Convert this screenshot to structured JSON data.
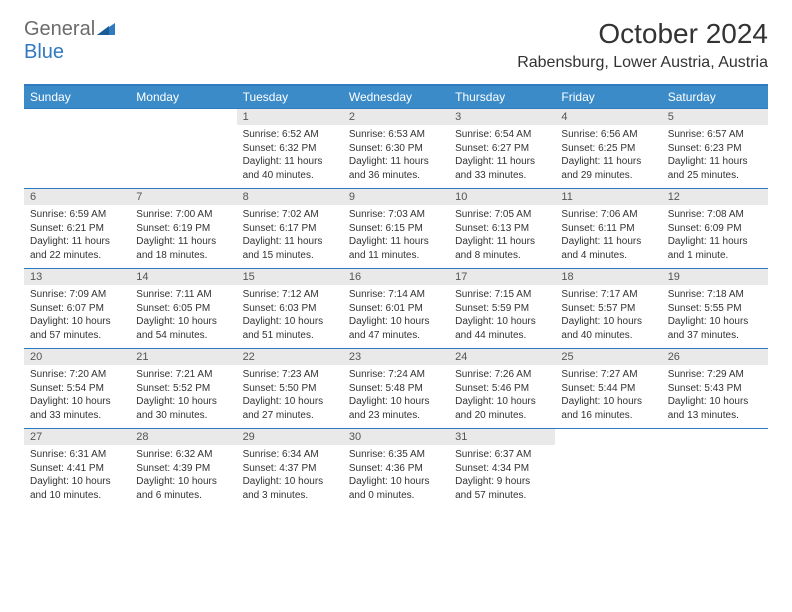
{
  "logo": {
    "text1": "General",
    "text2": "Blue"
  },
  "title": "October 2024",
  "location": "Rabensburg, Lower Austria, Austria",
  "dayHeaders": [
    "Sunday",
    "Monday",
    "Tuesday",
    "Wednesday",
    "Thursday",
    "Friday",
    "Saturday"
  ],
  "colors": {
    "header_bg": "#3b8bc9",
    "header_text": "#ffffff",
    "rule": "#2f7ac0",
    "daynum_bg": "#e9e9e9",
    "text": "#333333",
    "logo_gray": "#6b6b6b",
    "logo_blue": "#2f7ac0"
  },
  "weeks": [
    [
      {
        "n": "",
        "sr": "",
        "ss": "",
        "dl": ""
      },
      {
        "n": "",
        "sr": "",
        "ss": "",
        "dl": ""
      },
      {
        "n": "1",
        "sr": "Sunrise: 6:52 AM",
        "ss": "Sunset: 6:32 PM",
        "dl": "Daylight: 11 hours and 40 minutes."
      },
      {
        "n": "2",
        "sr": "Sunrise: 6:53 AM",
        "ss": "Sunset: 6:30 PM",
        "dl": "Daylight: 11 hours and 36 minutes."
      },
      {
        "n": "3",
        "sr": "Sunrise: 6:54 AM",
        "ss": "Sunset: 6:27 PM",
        "dl": "Daylight: 11 hours and 33 minutes."
      },
      {
        "n": "4",
        "sr": "Sunrise: 6:56 AM",
        "ss": "Sunset: 6:25 PM",
        "dl": "Daylight: 11 hours and 29 minutes."
      },
      {
        "n": "5",
        "sr": "Sunrise: 6:57 AM",
        "ss": "Sunset: 6:23 PM",
        "dl": "Daylight: 11 hours and 25 minutes."
      }
    ],
    [
      {
        "n": "6",
        "sr": "Sunrise: 6:59 AM",
        "ss": "Sunset: 6:21 PM",
        "dl": "Daylight: 11 hours and 22 minutes."
      },
      {
        "n": "7",
        "sr": "Sunrise: 7:00 AM",
        "ss": "Sunset: 6:19 PM",
        "dl": "Daylight: 11 hours and 18 minutes."
      },
      {
        "n": "8",
        "sr": "Sunrise: 7:02 AM",
        "ss": "Sunset: 6:17 PM",
        "dl": "Daylight: 11 hours and 15 minutes."
      },
      {
        "n": "9",
        "sr": "Sunrise: 7:03 AM",
        "ss": "Sunset: 6:15 PM",
        "dl": "Daylight: 11 hours and 11 minutes."
      },
      {
        "n": "10",
        "sr": "Sunrise: 7:05 AM",
        "ss": "Sunset: 6:13 PM",
        "dl": "Daylight: 11 hours and 8 minutes."
      },
      {
        "n": "11",
        "sr": "Sunrise: 7:06 AM",
        "ss": "Sunset: 6:11 PM",
        "dl": "Daylight: 11 hours and 4 minutes."
      },
      {
        "n": "12",
        "sr": "Sunrise: 7:08 AM",
        "ss": "Sunset: 6:09 PM",
        "dl": "Daylight: 11 hours and 1 minute."
      }
    ],
    [
      {
        "n": "13",
        "sr": "Sunrise: 7:09 AM",
        "ss": "Sunset: 6:07 PM",
        "dl": "Daylight: 10 hours and 57 minutes."
      },
      {
        "n": "14",
        "sr": "Sunrise: 7:11 AM",
        "ss": "Sunset: 6:05 PM",
        "dl": "Daylight: 10 hours and 54 minutes."
      },
      {
        "n": "15",
        "sr": "Sunrise: 7:12 AM",
        "ss": "Sunset: 6:03 PM",
        "dl": "Daylight: 10 hours and 51 minutes."
      },
      {
        "n": "16",
        "sr": "Sunrise: 7:14 AM",
        "ss": "Sunset: 6:01 PM",
        "dl": "Daylight: 10 hours and 47 minutes."
      },
      {
        "n": "17",
        "sr": "Sunrise: 7:15 AM",
        "ss": "Sunset: 5:59 PM",
        "dl": "Daylight: 10 hours and 44 minutes."
      },
      {
        "n": "18",
        "sr": "Sunrise: 7:17 AM",
        "ss": "Sunset: 5:57 PM",
        "dl": "Daylight: 10 hours and 40 minutes."
      },
      {
        "n": "19",
        "sr": "Sunrise: 7:18 AM",
        "ss": "Sunset: 5:55 PM",
        "dl": "Daylight: 10 hours and 37 minutes."
      }
    ],
    [
      {
        "n": "20",
        "sr": "Sunrise: 7:20 AM",
        "ss": "Sunset: 5:54 PM",
        "dl": "Daylight: 10 hours and 33 minutes."
      },
      {
        "n": "21",
        "sr": "Sunrise: 7:21 AM",
        "ss": "Sunset: 5:52 PM",
        "dl": "Daylight: 10 hours and 30 minutes."
      },
      {
        "n": "22",
        "sr": "Sunrise: 7:23 AM",
        "ss": "Sunset: 5:50 PM",
        "dl": "Daylight: 10 hours and 27 minutes."
      },
      {
        "n": "23",
        "sr": "Sunrise: 7:24 AM",
        "ss": "Sunset: 5:48 PM",
        "dl": "Daylight: 10 hours and 23 minutes."
      },
      {
        "n": "24",
        "sr": "Sunrise: 7:26 AM",
        "ss": "Sunset: 5:46 PM",
        "dl": "Daylight: 10 hours and 20 minutes."
      },
      {
        "n": "25",
        "sr": "Sunrise: 7:27 AM",
        "ss": "Sunset: 5:44 PM",
        "dl": "Daylight: 10 hours and 16 minutes."
      },
      {
        "n": "26",
        "sr": "Sunrise: 7:29 AM",
        "ss": "Sunset: 5:43 PM",
        "dl": "Daylight: 10 hours and 13 minutes."
      }
    ],
    [
      {
        "n": "27",
        "sr": "Sunrise: 6:31 AM",
        "ss": "Sunset: 4:41 PM",
        "dl": "Daylight: 10 hours and 10 minutes."
      },
      {
        "n": "28",
        "sr": "Sunrise: 6:32 AM",
        "ss": "Sunset: 4:39 PM",
        "dl": "Daylight: 10 hours and 6 minutes."
      },
      {
        "n": "29",
        "sr": "Sunrise: 6:34 AM",
        "ss": "Sunset: 4:37 PM",
        "dl": "Daylight: 10 hours and 3 minutes."
      },
      {
        "n": "30",
        "sr": "Sunrise: 6:35 AM",
        "ss": "Sunset: 4:36 PM",
        "dl": "Daylight: 10 hours and 0 minutes."
      },
      {
        "n": "31",
        "sr": "Sunrise: 6:37 AM",
        "ss": "Sunset: 4:34 PM",
        "dl": "Daylight: 9 hours and 57 minutes."
      },
      {
        "n": "",
        "sr": "",
        "ss": "",
        "dl": ""
      },
      {
        "n": "",
        "sr": "",
        "ss": "",
        "dl": ""
      }
    ]
  ]
}
